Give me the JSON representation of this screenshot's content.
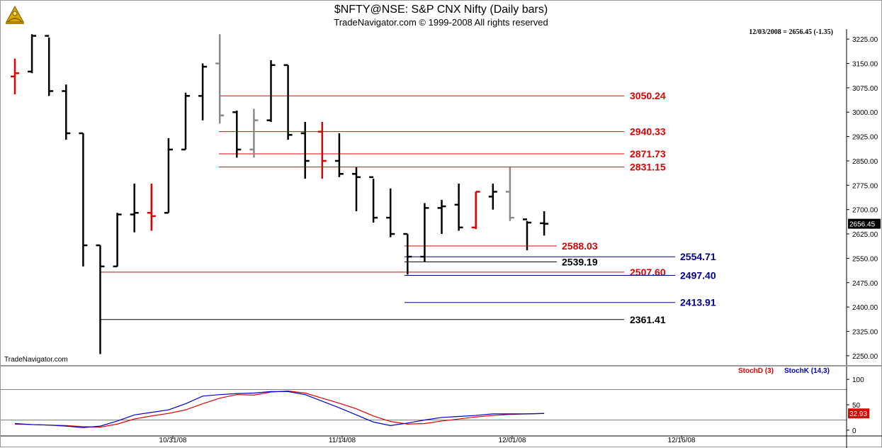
{
  "header": {
    "title": "$NFTY@NSE:  S&P CNX Nifty  (Daily bars)",
    "copyright": "TradeNavigator.com © 1999-2008 All rights reserved",
    "readout": "12/03/2008 = 2656.45 (-1.35)",
    "watermark": "TradeNavigator.com",
    "logo_icon": "sextant-logo-icon"
  },
  "colors": {
    "up": "#000000",
    "down": "#000000",
    "red_bar": "#e00000",
    "gray_bar": "#8a8a8a",
    "level_red": "#e00000",
    "level_blue": "#00008b",
    "level_black": "#000000",
    "stochd": "#e00000",
    "stochk": "#0000cc"
  },
  "chart_data": [
    {
      "type": "ohlc",
      "title": "$NFTY@NSE:  S&P CNX Nifty  (Daily bars)",
      "y_ticks": [
        "3225.00",
        "3150.00",
        "3075.00",
        "3000.00",
        "2925.00",
        "2850.00",
        "2775.00",
        "2700.00",
        "2625.00",
        "2550.00",
        "2475.00",
        "2400.00",
        "2325.00",
        "2250.00"
      ],
      "ylim": [
        2230,
        3245
      ],
      "x_ticks": [
        "10/31/08",
        "11/14/08",
        "12/01/08",
        "12/16/08"
      ],
      "last_price_label": "2656.45",
      "bars": [
        {
          "o": 3110,
          "h": 3165,
          "l": 3055,
          "c": 3120,
          "color": "red"
        },
        {
          "o": 3125,
          "h": 3240,
          "l": 3120,
          "c": 3235,
          "color": "black"
        },
        {
          "o": 3235,
          "h": 3230,
          "l": 3050,
          "c": 3065,
          "color": "black"
        },
        {
          "o": 3065,
          "h": 3085,
          "l": 2915,
          "c": 2935,
          "color": "black"
        },
        {
          "o": 2935,
          "h": 2935,
          "l": 2525,
          "c": 2590,
          "color": "black"
        },
        {
          "o": 2590,
          "h": 2590,
          "l": 2255,
          "c": 2525,
          "color": "black"
        },
        {
          "o": 2525,
          "h": 2690,
          "l": 2525,
          "c": 2685,
          "color": "black"
        },
        {
          "o": 2685,
          "h": 2780,
          "l": 2630,
          "c": 2690,
          "color": "black"
        },
        {
          "o": 2690,
          "h": 2780,
          "l": 2635,
          "c": 2680,
          "color": "red"
        },
        {
          "o": 2690,
          "h": 2920,
          "l": 2690,
          "c": 2885,
          "color": "black"
        },
        {
          "o": 2885,
          "h": 3060,
          "l": 2885,
          "c": 3050,
          "color": "black"
        },
        {
          "o": 3050,
          "h": 3150,
          "l": 2975,
          "c": 3140,
          "color": "black"
        },
        {
          "o": 3150,
          "h": 3240,
          "l": 2965,
          "c": 2990,
          "color": "gray"
        },
        {
          "o": 3000,
          "h": 3005,
          "l": 2860,
          "c": 2885,
          "color": "black"
        },
        {
          "o": 2885,
          "h": 3010,
          "l": 2860,
          "c": 2975,
          "color": "gray"
        },
        {
          "o": 2975,
          "h": 3160,
          "l": 2970,
          "c": 3145,
          "color": "black"
        },
        {
          "o": 3145,
          "h": 3145,
          "l": 2915,
          "c": 2930,
          "color": "black"
        },
        {
          "o": 2935,
          "h": 2970,
          "l": 2795,
          "c": 2850,
          "color": "black"
        },
        {
          "o": 2940,
          "h": 2970,
          "l": 2795,
          "c": 2850,
          "color": "red"
        },
        {
          "o": 2850,
          "h": 2935,
          "l": 2800,
          "c": 2810,
          "color": "black"
        },
        {
          "o": 2810,
          "h": 2830,
          "l": 2695,
          "c": 2800,
          "color": "black"
        },
        {
          "o": 2800,
          "h": 2795,
          "l": 2660,
          "c": 2675,
          "color": "black"
        },
        {
          "o": 2675,
          "h": 2765,
          "l": 2615,
          "c": 2625,
          "color": "black"
        },
        {
          "o": 2625,
          "h": 2625,
          "l": 2500,
          "c": 2555,
          "color": "black"
        },
        {
          "o": 2555,
          "h": 2720,
          "l": 2540,
          "c": 2705,
          "color": "black"
        },
        {
          "o": 2705,
          "h": 2730,
          "l": 2625,
          "c": 2710,
          "color": "black"
        },
        {
          "o": 2715,
          "h": 2780,
          "l": 2635,
          "c": 2645,
          "color": "black"
        },
        {
          "o": 2645,
          "h": 2755,
          "l": 2640,
          "c": 2755,
          "color": "red"
        },
        {
          "o": 2740,
          "h": 2780,
          "l": 2700,
          "c": 2755,
          "color": "black"
        },
        {
          "o": 2755,
          "h": 2830,
          "l": 2665,
          "c": 2675,
          "color": "gray"
        },
        {
          "o": 2670,
          "h": 2665,
          "l": 2575,
          "c": 2660,
          "color": "black"
        },
        {
          "o": 2658,
          "h": 2695,
          "l": 2620,
          "c": 2656.45,
          "color": "black"
        }
      ],
      "levels": [
        {
          "value": "3050.24",
          "color": "red"
        },
        {
          "value": "2940.33",
          "color": "red"
        },
        {
          "value": "2871.73",
          "color": "red"
        },
        {
          "value": "2831.15",
          "color": "red"
        },
        {
          "value": "2588.03",
          "color": "red"
        },
        {
          "value": "2554.71",
          "color": "blue"
        },
        {
          "value": "2539.19",
          "color": "black"
        },
        {
          "value": "2507.60",
          "color": "red"
        },
        {
          "value": "2497.40",
          "color": "blue"
        },
        {
          "value": "2413.91",
          "color": "blue"
        },
        {
          "value": "2361.41",
          "color": "black"
        }
      ]
    },
    {
      "type": "line",
      "legend": [
        "StochD (3)",
        "StochK (14,3)"
      ],
      "y_ticks": [
        "100",
        "50",
        "0"
      ],
      "ylim": [
        -10,
        110
      ],
      "last_value_label": "32.93",
      "series": [
        {
          "name": "StochD (3)",
          "color": "red",
          "values": [
            12,
            11,
            10,
            9,
            7,
            6,
            12,
            22,
            28,
            33,
            40,
            52,
            63,
            70,
            69,
            75,
            77,
            73,
            63,
            53,
            42,
            28,
            17,
            12,
            13,
            18,
            22,
            26,
            29,
            31,
            32,
            32.93
          ]
        },
        {
          "name": "StochK (14,3)",
          "color": "blue",
          "values": [
            13,
            11,
            10,
            8,
            5,
            8,
            18,
            30,
            35,
            40,
            52,
            67,
            70,
            72,
            73,
            76,
            76,
            70,
            57,
            44,
            30,
            16,
            9,
            14,
            20,
            25,
            27,
            29,
            32,
            32,
            32,
            32.93
          ]
        }
      ]
    }
  ]
}
